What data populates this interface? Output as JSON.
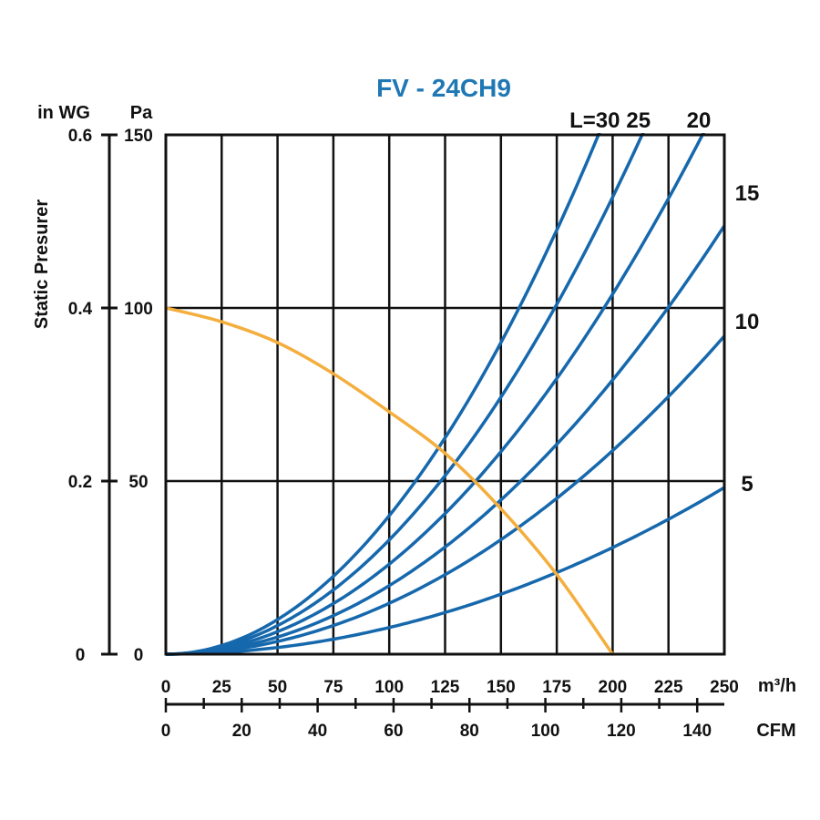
{
  "colors": {
    "title": "#1f77b4",
    "system": "#1668ad",
    "fan": "#f4ae3d",
    "grid": "#111111"
  },
  "chart_data": {
    "type": "line",
    "title": "FV - 24CH9",
    "ylabel": "Static Presurer",
    "y_units_left": "in WG",
    "y_units_right": "Pa",
    "x_unit_primary": "m³/h",
    "x_unit_secondary": "CFM",
    "xlim": [
      0,
      250
    ],
    "ylim": [
      0,
      150
    ],
    "x_ticks": [
      0,
      25,
      50,
      75,
      100,
      125,
      150,
      175,
      200,
      225,
      250
    ],
    "y_ticks_pa": [
      0,
      50,
      100,
      150
    ],
    "y_ticks_inwg": [
      "0",
      "0.2",
      "0.4",
      "0.6"
    ],
    "cfm_ticks": [
      0,
      20,
      40,
      60,
      80,
      100,
      120,
      140
    ],
    "cfm_minor_step": 10,
    "cfm_per_m3h": 0.5886,
    "fan_curve": {
      "name": "fan",
      "x": [
        0,
        25,
        50,
        75,
        100,
        125,
        150,
        175,
        200
      ],
      "y": [
        100,
        96,
        90,
        81,
        70,
        58,
        42,
        23,
        0
      ]
    },
    "system_curves": [
      {
        "name": "30",
        "label": "L=30",
        "k": 0.004
      },
      {
        "name": "25",
        "label": "25",
        "k": 0.0033
      },
      {
        "name": "20",
        "label": "20",
        "k": 0.0026
      },
      {
        "name": "15",
        "label": "15",
        "k": 0.00198
      },
      {
        "name": "10",
        "label": "10",
        "k": 0.00147
      },
      {
        "name": "5",
        "label": "5",
        "k": 0.00077
      }
    ],
    "top_labels": [
      "L=30",
      "25",
      "20"
    ],
    "right_labels": [
      "15",
      "10",
      "5"
    ]
  }
}
